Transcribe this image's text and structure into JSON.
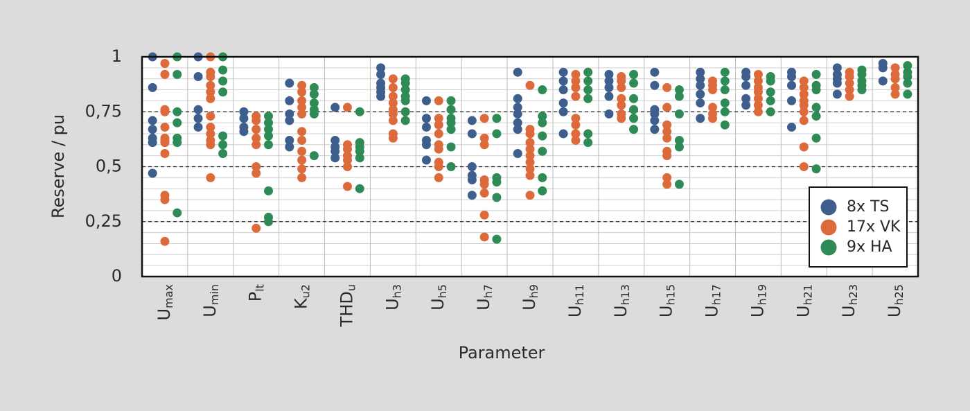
{
  "chart_data": {
    "type": "strip",
    "x_label": "Parameter",
    "y_label": "Reserve / pu",
    "ylim": [
      0,
      1
    ],
    "yticks": [
      {
        "value": 0,
        "label": "0"
      },
      {
        "value": 0.25,
        "label": "0,25"
      },
      {
        "value": 0.5,
        "label": "0,5"
      },
      {
        "value": 0.75,
        "label": "0,75"
      },
      {
        "value": 1,
        "label": "1"
      }
    ],
    "grid": true,
    "legend_position": "lower right",
    "categories": [
      {
        "base": "U",
        "sub": "max"
      },
      {
        "base": "U",
        "sub": "min"
      },
      {
        "base": "P",
        "sub": "lt"
      },
      {
        "base": "K",
        "sub": "u2"
      },
      {
        "base": "THD",
        "sub": "u"
      },
      {
        "base": "U",
        "sub": "h3"
      },
      {
        "base": "U",
        "sub": "h5"
      },
      {
        "base": "U",
        "sub": "h7"
      },
      {
        "base": "U",
        "sub": "h9"
      },
      {
        "base": "U",
        "sub": "h11"
      },
      {
        "base": "U",
        "sub": "h13"
      },
      {
        "base": "U",
        "sub": "h15"
      },
      {
        "base": "U",
        "sub": "h17"
      },
      {
        "base": "U",
        "sub": "h19"
      },
      {
        "base": "U",
        "sub": "h21"
      },
      {
        "base": "U",
        "sub": "h23"
      },
      {
        "base": "U",
        "sub": "h25"
      }
    ],
    "series": [
      {
        "name": "8x TS",
        "color": "#3e5f8e",
        "values": [
          [
            1,
            0.86,
            0.71,
            0.67,
            0.63,
            0.61,
            0.47
          ],
          [
            1,
            0.91,
            0.76,
            0.72,
            0.68
          ],
          [
            0.75,
            0.72,
            0.68,
            0.66
          ],
          [
            0.88,
            0.8,
            0.74,
            0.71,
            0.62,
            0.59
          ],
          [
            0.77,
            0.62,
            0.59,
            0.57,
            0.54
          ],
          [
            0.95,
            0.92,
            0.88,
            0.86,
            0.84,
            0.82
          ],
          [
            0.8,
            0.72,
            0.68,
            0.62,
            0.6,
            0.53
          ],
          [
            0.71,
            0.65,
            0.5,
            0.46,
            0.44,
            0.37
          ],
          [
            0.93,
            0.81,
            0.77,
            0.74,
            0.7,
            0.67,
            0.56
          ],
          [
            0.93,
            0.89,
            0.85,
            0.79,
            0.75,
            0.65
          ],
          [
            0.92,
            0.89,
            0.86,
            0.82,
            0.74
          ],
          [
            0.93,
            0.87,
            0.76,
            0.74,
            0.71,
            0.67
          ],
          [
            0.93,
            0.9,
            0.87,
            0.83,
            0.79,
            0.72
          ],
          [
            0.93,
            0.91,
            0.87,
            0.81,
            0.78
          ],
          [
            0.93,
            0.91,
            0.87,
            0.8,
            0.68
          ],
          [
            0.95,
            0.92,
            0.9,
            0.88,
            0.83
          ],
          [
            0.97,
            0.95,
            0.89
          ]
        ]
      },
      {
        "name": "17x VK",
        "color": "#dd6a3b",
        "values": [
          [
            0.97,
            0.92,
            0.76,
            0.75,
            0.68,
            0.63,
            0.62,
            0.61,
            0.56,
            0.37,
            0.35,
            0.16
          ],
          [
            1,
            0.93,
            0.91,
            0.87,
            0.84,
            0.81,
            0.73,
            0.68,
            0.65,
            0.62,
            0.6,
            0.45
          ],
          [
            0.73,
            0.71,
            0.67,
            0.63,
            0.6,
            0.5,
            0.47,
            0.22
          ],
          [
            0.87,
            0.84,
            0.8,
            0.77,
            0.74,
            0.66,
            0.62,
            0.57,
            0.53,
            0.49,
            0.45
          ],
          [
            0.77,
            0.6,
            0.58,
            0.55,
            0.53,
            0.5,
            0.41
          ],
          [
            0.9,
            0.86,
            0.82,
            0.79,
            0.76,
            0.74,
            0.71,
            0.65,
            0.63
          ],
          [
            0.8,
            0.72,
            0.69,
            0.65,
            0.6,
            0.58,
            0.52,
            0.5,
            0.45
          ],
          [
            0.72,
            0.63,
            0.6,
            0.44,
            0.42,
            0.38,
            0.28,
            0.18
          ],
          [
            0.87,
            0.67,
            0.65,
            0.61,
            0.58,
            0.55,
            0.52,
            0.49,
            0.46,
            0.37
          ],
          [
            0.92,
            0.89,
            0.86,
            0.82,
            0.72,
            0.69,
            0.65,
            0.62
          ],
          [
            0.91,
            0.89,
            0.86,
            0.81,
            0.78,
            0.74,
            0.72
          ],
          [
            0.86,
            0.77,
            0.69,
            0.66,
            0.63,
            0.57,
            0.55,
            0.45,
            0.42
          ],
          [
            0.89,
            0.87,
            0.85,
            0.77,
            0.74,
            0.72
          ],
          [
            0.92,
            0.89,
            0.86,
            0.84,
            0.81,
            0.78,
            0.75
          ],
          [
            0.89,
            0.86,
            0.83,
            0.8,
            0.78,
            0.75,
            0.71,
            0.59,
            0.5
          ],
          [
            0.93,
            0.91,
            0.88,
            0.85,
            0.82
          ],
          [
            0.95,
            0.92,
            0.9,
            0.86,
            0.83
          ]
        ]
      },
      {
        "name": "9x HA",
        "color": "#2e8b55",
        "values": [
          [
            1,
            0.92,
            0.75,
            0.7,
            0.63,
            0.61,
            0.29
          ],
          [
            1,
            0.94,
            0.89,
            0.84,
            0.64,
            0.6,
            0.56
          ],
          [
            0.73,
            0.7,
            0.67,
            0.64,
            0.6,
            0.39,
            0.27,
            0.25
          ],
          [
            0.86,
            0.83,
            0.79,
            0.76,
            0.74,
            0.55
          ],
          [
            0.75,
            0.61,
            0.59,
            0.57,
            0.54,
            0.4
          ],
          [
            0.9,
            0.88,
            0.85,
            0.82,
            0.8,
            0.75,
            0.71
          ],
          [
            0.8,
            0.76,
            0.72,
            0.7,
            0.67,
            0.59,
            0.5
          ],
          [
            0.72,
            0.65,
            0.45,
            0.43,
            0.36,
            0.17
          ],
          [
            0.85,
            0.73,
            0.7,
            0.64,
            0.57,
            0.45,
            0.39
          ],
          [
            0.93,
            0.89,
            0.85,
            0.81,
            0.65,
            0.61
          ],
          [
            0.92,
            0.88,
            0.81,
            0.76,
            0.72,
            0.67
          ],
          [
            0.85,
            0.82,
            0.74,
            0.62,
            0.59,
            0.42
          ],
          [
            0.93,
            0.89,
            0.85,
            0.79,
            0.75,
            0.69
          ],
          [
            0.91,
            0.89,
            0.84,
            0.8,
            0.75
          ],
          [
            0.92,
            0.87,
            0.85,
            0.77,
            0.73,
            0.63,
            0.49
          ],
          [
            0.94,
            0.92,
            0.89,
            0.87,
            0.85
          ],
          [
            0.96,
            0.93,
            0.91,
            0.88,
            0.83
          ]
        ]
      }
    ]
  }
}
